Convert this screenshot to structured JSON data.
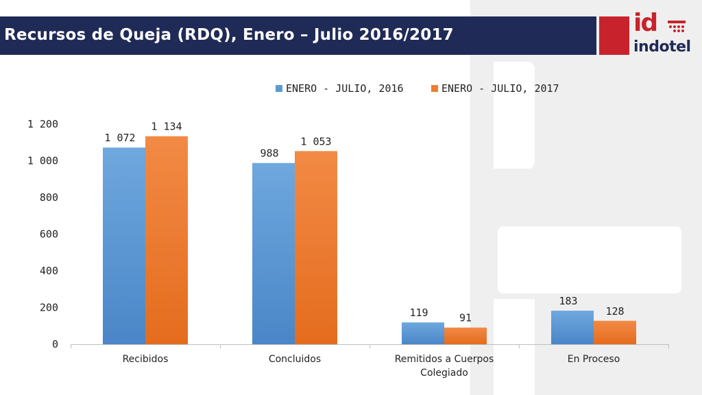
{
  "slide": {
    "title": "Recursos de Queja (RDQ), Enero – Julio 2016/2017",
    "logo_id": "id",
    "logo_word": "indotel",
    "title_bar_color": "#1f2a56",
    "logo_red": "#c8232c"
  },
  "chart_data": {
    "type": "bar",
    "categories": [
      "Recibidos",
      "Concluidos",
      "Remitidos a Cuerpos Colegiado",
      "En Proceso"
    ],
    "category_lines": [
      [
        "Recibidos"
      ],
      [
        "Concluidos"
      ],
      [
        "Remitidos a Cuerpos",
        "Colegiado"
      ],
      [
        "En Proceso"
      ]
    ],
    "series": [
      {
        "name": "ENERO - JULIO, 2016",
        "values": [
          1072,
          988,
          119,
          183
        ],
        "labels": [
          "1 072",
          "988",
          "119",
          "183"
        ],
        "color": "#5b9bd5"
      },
      {
        "name": "ENERO - JULIO, 2017",
        "values": [
          1134,
          1053,
          91,
          128
        ],
        "labels": [
          "1 134",
          "1 053",
          "91",
          "128"
        ],
        "color": "#ed7d31"
      }
    ],
    "yticks": [
      0,
      200,
      400,
      600,
      800,
      1000,
      1200
    ],
    "ytick_labels": [
      "0",
      "200",
      "400",
      "600",
      "800",
      "1 000",
      "1 200"
    ],
    "ylim": [
      0,
      1200
    ],
    "title": "",
    "xlabel": "",
    "ylabel": "",
    "grid": false,
    "legend_position": "top"
  }
}
